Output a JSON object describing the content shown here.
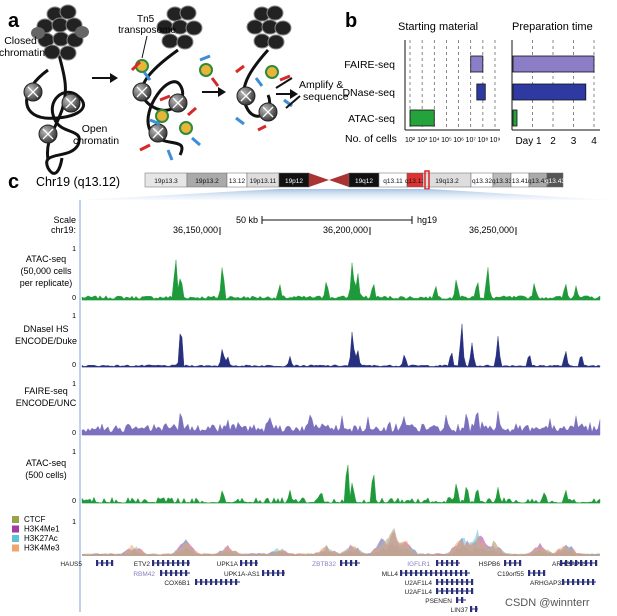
{
  "panels": {
    "a": "a",
    "b": "b",
    "c": "c"
  },
  "panel_a": {
    "closed_chromatin": [
      "Closed",
      "chromatin"
    ],
    "open_chromatin": [
      "Open",
      "chromatin"
    ],
    "tn5": [
      "Tn5",
      "transposome"
    ],
    "amplify": [
      "Amplify &",
      "sequence"
    ]
  },
  "chart_data": [
    {
      "type": "bar",
      "title": "Starting material",
      "xlabel": "No. of cells",
      "x_scale": "log",
      "x_ticks": [
        "10²",
        "10³",
        "10⁴",
        "10⁵",
        "10⁶",
        "10⁷",
        "10⁸",
        "10⁹"
      ],
      "categories": [
        "FAIRE-seq",
        "DNase-seq",
        "ATAC-seq"
      ],
      "ranges_log10": [
        [
          7,
          8
        ],
        [
          7.5,
          8.2
        ],
        [
          2,
          4
        ]
      ],
      "colors": [
        "#8b7dc6",
        "#2e3aa2",
        "#24a33c"
      ]
    },
    {
      "type": "bar",
      "title": "Preparation time",
      "xlabel": "",
      "x_ticks": [
        "Day 1",
        "2",
        "3",
        "4"
      ],
      "categories": [
        "FAIRE-seq",
        "DNase-seq",
        "ATAC-seq"
      ],
      "values_days": [
        4,
        3.6,
        0.15
      ],
      "colors": [
        "#8b7dc6",
        "#2e3aa2",
        "#24a33c"
      ]
    },
    {
      "type": "area",
      "title": "Chr19 (q13.12)",
      "scale": "50 kb",
      "assembly": "hg19",
      "scale_label": [
        "Scale",
        "chr19:"
      ],
      "positions": [
        "36,150,000",
        "36,200,000",
        "36,250,000"
      ],
      "ideogram_bands": [
        "19p13.3",
        "19p13.2",
        "13.12",
        "19p13.11",
        "19p12",
        "19q12",
        "q13.11",
        "q13.12",
        "19q13.2",
        "q13.32",
        "q13.33",
        "13.41",
        "q13.42",
        "q13.43"
      ],
      "tracks": [
        {
          "label": [
            "ATAC-seq",
            "(50,000 cells",
            "per replicate)"
          ],
          "color": "#1f9a3a",
          "ymax": "1",
          "ymin": "0"
        },
        {
          "label": [
            "DNaseI HS",
            "ENCODE/Duke"
          ],
          "color": "#27307f",
          "ymax": "1",
          "ymin": "0"
        },
        {
          "label": [
            "FAIRE-seq",
            "ENCODE/UNC"
          ],
          "color": "#7a70bd",
          "ymax": "1",
          "ymin": "0"
        },
        {
          "label": [
            "ATAC-seq",
            "(500 cells)"
          ],
          "color": "#1f9a3a",
          "ymax": "1",
          "ymin": "0"
        }
      ],
      "histone_legend": [
        {
          "name": "CTCF",
          "color": "#9aa24a"
        },
        {
          "name": "H3K4Me1",
          "color": "#a33aa6"
        },
        {
          "name": "H3K27Ac",
          "color": "#5fc3d8"
        },
        {
          "name": "H3K4Me3",
          "color": "#f0a46e"
        }
      ],
      "histone_ymax": "1",
      "genes": [
        "HAUS5",
        "ETV2",
        "RBM42",
        "COX6B1",
        "UPK1A",
        "UPK1A-AS1",
        "ZBTB32",
        "IGFLR1",
        "MLL4",
        "U2AF1L4",
        "U2AF1L4",
        "PSENEN",
        "LIN37",
        "HSPB6",
        "C19orf55",
        "ARHGAP33",
        "ARHGAP33"
      ]
    }
  ],
  "watermark": "CSDN @winnterr"
}
